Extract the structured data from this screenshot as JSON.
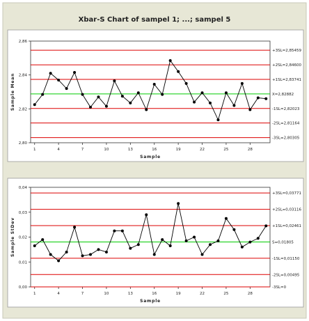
{
  "title": "Xbar-S Chart of sampel 1; ...; sampel 5",
  "colors": {
    "background": "#ffffff",
    "panel_fill": "#e7e7d6",
    "plot_fill": "#ffffff",
    "frame": "#999999",
    "control_limit": "#dd0000",
    "center_line": "#00cc00",
    "data_line": "#000000"
  },
  "chart_data": [
    {
      "type": "line",
      "name": "xbar",
      "ylabel": "Sample Mean",
      "xlabel": "Sample",
      "xlim": [
        0.5,
        30.5
      ],
      "ylim": [
        2.8,
        2.86
      ],
      "xticks": [
        1,
        4,
        7,
        10,
        13,
        16,
        19,
        22,
        25,
        28
      ],
      "yticks": [
        2.8,
        2.82,
        2.84,
        2.86
      ],
      "ytick_labels": [
        "2,80",
        "2,82",
        "2,84",
        "2,86"
      ],
      "x": [
        1,
        2,
        3,
        4,
        5,
        6,
        7,
        8,
        9,
        10,
        11,
        12,
        13,
        14,
        15,
        16,
        17,
        18,
        19,
        20,
        21,
        22,
        23,
        24,
        25,
        26,
        27,
        28,
        29,
        30
      ],
      "values": [
        2.8225,
        2.8285,
        2.841,
        2.837,
        2.832,
        2.8415,
        2.8285,
        2.821,
        2.827,
        2.8215,
        2.8365,
        2.8275,
        2.8235,
        2.8295,
        2.8195,
        2.8345,
        2.8285,
        2.8485,
        2.842,
        2.835,
        2.824,
        2.8295,
        2.8235,
        2.8135,
        2.8295,
        2.822,
        2.835,
        2.8195,
        2.8265,
        2.826
      ],
      "limits": [
        {
          "label": "+3SL=2,85459",
          "value": 2.85459,
          "kind": "control"
        },
        {
          "label": "+2SL=2,84600",
          "value": 2.846,
          "kind": "control"
        },
        {
          "label": "+1SL=2,83741",
          "value": 2.83741,
          "kind": "control"
        },
        {
          "label": "X=2,82882",
          "value": 2.82882,
          "kind": "center"
        },
        {
          "label": "-1SL=2,82023",
          "value": 2.82023,
          "kind": "control"
        },
        {
          "label": "-2SL=2,81164",
          "value": 2.81164,
          "kind": "control"
        },
        {
          "label": "-3SL=2,80305",
          "value": 2.80305,
          "kind": "control"
        }
      ]
    },
    {
      "type": "line",
      "name": "s",
      "ylabel": "Sample StDev",
      "xlabel": "Sample",
      "xlim": [
        0.5,
        30.5
      ],
      "ylim": [
        0.0,
        0.04
      ],
      "xticks": [
        1,
        4,
        7,
        10,
        13,
        16,
        19,
        22,
        25,
        28
      ],
      "yticks": [
        0.0,
        0.01,
        0.02,
        0.03,
        0.04
      ],
      "ytick_labels": [
        "0,00",
        "0,01",
        "0,02",
        "0,03",
        "0,04"
      ],
      "x": [
        1,
        2,
        3,
        4,
        5,
        6,
        7,
        8,
        9,
        10,
        11,
        12,
        13,
        14,
        15,
        16,
        17,
        18,
        19,
        20,
        21,
        22,
        23,
        24,
        25,
        26,
        27,
        28,
        29,
        30
      ],
      "values": [
        0.0165,
        0.019,
        0.013,
        0.0105,
        0.014,
        0.024,
        0.0125,
        0.013,
        0.015,
        0.014,
        0.0225,
        0.0225,
        0.0155,
        0.017,
        0.029,
        0.013,
        0.019,
        0.0165,
        0.0335,
        0.0185,
        0.02,
        0.013,
        0.017,
        0.0185,
        0.0275,
        0.023,
        0.016,
        0.018,
        0.0195,
        0.0245
      ],
      "limits": [
        {
          "label": "+3SL=0,03771",
          "value": 0.03771,
          "kind": "control"
        },
        {
          "label": "+2SL=0,03116",
          "value": 0.03116,
          "kind": "control"
        },
        {
          "label": "+1SL=0,02461",
          "value": 0.02461,
          "kind": "control"
        },
        {
          "label": "S=0,01805",
          "value": 0.01805,
          "kind": "center"
        },
        {
          "label": "-1SL=0,01150",
          "value": 0.0115,
          "kind": "control"
        },
        {
          "label": "-2SL=0,00495",
          "value": 0.00495,
          "kind": "control"
        },
        {
          "label": "-3SL=0",
          "value": 0.0,
          "kind": "control"
        }
      ]
    }
  ]
}
